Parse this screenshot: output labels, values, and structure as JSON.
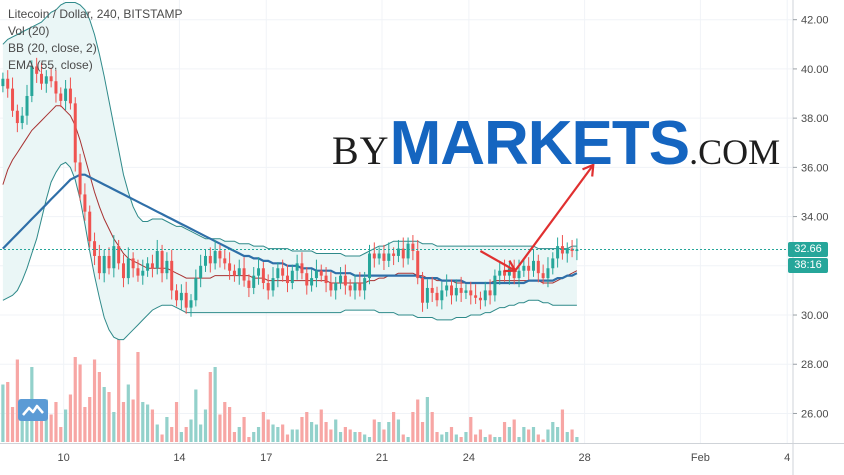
{
  "legend": {
    "line1": "Litecoin / Dollar, 240, BITSTAMP",
    "line2": "Vol (20)",
    "line3": "BB (20, close, 2)",
    "line4": "EMA (55, close)"
  },
  "watermark": {
    "by": "BY",
    "main": "MARKETS",
    "com": ".COM"
  },
  "price_tags": {
    "last": "32.66",
    "timer": "38:16"
  },
  "colors": {
    "up": "#26a69a",
    "down": "#ef5350",
    "vol_up": "#93d1cb",
    "vol_down": "#f7a6a4",
    "bb": "#2f8a8a",
    "bb_fill": "#eaf6f6",
    "ema": "#2f6fa8",
    "basis": "#a83232",
    "arrow": "#e03030",
    "last_price": "#26a69a",
    "timer": "#26a69a"
  },
  "chart_data": {
    "type": "candlestick",
    "symbol": "Litecoin / Dollar, 240, BITSTAMP",
    "ylim": [
      24.8,
      42.8
    ],
    "y_ticks": [
      26.0,
      28.0,
      30.0,
      32.0,
      34.0,
      36.0,
      38.0,
      40.0,
      42.0
    ],
    "y_tick_labels": [
      "26.00",
      "28.00",
      "30.00",
      "32.00",
      "34.00",
      "36.00",
      "38.00",
      "40.00",
      "42.00"
    ],
    "x_tick_labels": [
      "10",
      "14",
      "17",
      "21",
      "24",
      "28",
      "Feb",
      "4"
    ],
    "x_tick_days": [
      10,
      14,
      17,
      21,
      24,
      28,
      32,
      35
    ],
    "x_range_days": [
      7.8,
      35.2
    ],
    "last_price": 32.66,
    "closes": [
      39.6,
      39.2,
      38.3,
      37.8,
      38.1,
      38.9,
      40.1,
      39.8,
      39.4,
      39.7,
      39.5,
      39.0,
      38.7,
      39.2,
      38.6,
      36.2,
      34.9,
      34.2,
      33.0,
      32.4,
      31.7,
      32.4,
      31.9,
      32.8,
      32.1,
      31.5,
      32.3,
      31.9,
      31.6,
      31.8,
      32.1,
      31.9,
      32.6,
      31.7,
      32.2,
      31.0,
      30.6,
      30.9,
      30.3,
      30.6,
      31.5,
      32.0,
      32.4,
      32.1,
      32.6,
      32.3,
      32.1,
      31.8,
      31.6,
      31.9,
      31.4,
      31.1,
      31.6,
      31.9,
      31.3,
      31.0,
      31.5,
      31.9,
      31.6,
      31.3,
      31.8,
      32.1,
      31.7,
      31.2,
      31.5,
      31.8,
      31.6,
      31.3,
      31.0,
      31.3,
      31.6,
      31.2,
      31.0,
      31.3,
      31.0,
      31.5,
      32.5,
      32.3,
      32.5,
      32.2,
      32.5,
      32.4,
      32.7,
      32.3,
      32.9,
      32.6,
      31.5,
      30.5,
      31.1,
      30.9,
      30.6,
      31.0,
      31.2,
      30.8,
      31.1,
      30.9,
      31.0,
      30.8,
      30.7,
      30.6,
      31.0,
      30.8,
      31.6,
      31.8,
      31.6,
      31.9,
      31.5,
      31.8,
      32.0,
      31.8,
      32.2,
      31.7,
      31.5,
      31.9,
      32.3,
      32.8,
      32.5,
      32.7,
      32.6,
      32.66
    ],
    "volumes": [
      2.3,
      2.4,
      1.4,
      3.3,
      1.2,
      1.2,
      3.0,
      1.0,
      1.3,
      1.7,
      1.1,
      1.6,
      0.6,
      1.3,
      1.9,
      3.4,
      3.1,
      1.4,
      1.8,
      3.3,
      2.8,
      2.2,
      2.0,
      1.2,
      4.2,
      1.6,
      2.3,
      1.7,
      3.6,
      1.6,
      1.5,
      1.3,
      0.7,
      0.3,
      1.0,
      0.6,
      1.6,
      0.4,
      0.6,
      0.9,
      2.1,
      0.7,
      1.3,
      2.8,
      3.0,
      1.1,
      1.6,
      1.4,
      0.4,
      0.6,
      1.0,
      0.2,
      0.4,
      0.6,
      1.2,
      0.9,
      0.7,
      0.6,
      0.7,
      0.3,
      0.5,
      0.5,
      1.0,
      1.2,
      0.8,
      0.7,
      1.3,
      0.8,
      0.5,
      0.9,
      0.4,
      0.6,
      0.5,
      0.4,
      0.4,
      0.3,
      0.2,
      0.9,
      0.8,
      0.5,
      0.8,
      1.2,
      0.9,
      0.3,
      0.2,
      1.2,
      1.7,
      0.8,
      1.8,
      1.2,
      0.4,
      0.3,
      0.4,
      0.6,
      0.3,
      0.2,
      0.4,
      1.0,
      0.3,
      0.5,
      0.2,
      0.3,
      0.2,
      0.2,
      0.8,
      0.6,
      0.9,
      0.2,
      0.6,
      0.5,
      0.6,
      0.3,
      0.1,
      0.5,
      0.8,
      0.6,
      1.3,
      0.4,
      0.5,
      0.2
    ],
    "bb_upper": [
      41.0,
      41.2,
      41.3,
      41.4,
      41.5,
      41.6,
      41.7,
      41.8,
      41.9,
      42.1,
      42.3,
      42.4,
      42.6,
      42.7,
      42.7,
      42.7,
      42.6,
      42.4,
      42.0,
      41.4,
      40.6,
      39.7,
      38.7,
      37.7,
      36.7,
      35.7,
      35.0,
      34.4,
      34.0,
      33.8,
      33.8,
      33.9,
      33.9,
      33.9,
      33.8,
      33.7,
      33.6,
      33.6,
      33.5,
      33.4,
      33.3,
      33.2,
      33.1,
      33.1,
      33.1,
      33.1,
      33.0,
      33.0,
      33.0,
      32.9,
      32.9,
      32.9,
      32.8,
      32.8,
      32.8,
      32.7,
      32.7,
      32.7,
      32.7,
      32.7,
      32.6,
      32.6,
      32.6,
      32.6,
      32.6,
      32.5,
      32.5,
      32.5,
      32.5,
      32.5,
      32.5,
      32.4,
      32.4,
      32.4,
      32.4,
      32.5,
      32.6,
      32.7,
      32.8,
      32.8,
      32.9,
      33.0,
      33.0,
      33.0,
      33.0,
      33.0,
      33.0,
      32.9,
      32.9,
      32.9,
      32.8,
      32.8,
      32.8,
      32.8,
      32.8,
      32.8,
      32.8,
      32.8,
      32.8,
      32.8,
      32.8,
      32.8,
      32.8,
      32.8,
      32.8,
      32.8,
      32.8,
      32.8,
      32.8,
      32.8,
      32.8,
      32.7,
      32.7,
      32.7,
      32.7,
      32.7,
      32.7,
      32.7,
      32.8,
      32.8
    ],
    "bb_lower": [
      30.6,
      30.7,
      30.8,
      31.0,
      31.4,
      31.9,
      32.5,
      33.1,
      33.9,
      34.7,
      35.4,
      35.8,
      36.1,
      36.2,
      36.0,
      35.5,
      34.7,
      33.7,
      32.6,
      31.6,
      30.7,
      29.9,
      29.4,
      29.1,
      29.0,
      29.0,
      29.2,
      29.4,
      29.6,
      29.8,
      30.0,
      30.2,
      30.3,
      30.4,
      30.4,
      30.4,
      30.3,
      30.2,
      30.1,
      30.1,
      30.1,
      30.1,
      30.1,
      30.1,
      30.1,
      30.1,
      30.1,
      30.1,
      30.1,
      30.1,
      30.1,
      30.1,
      30.1,
      30.1,
      30.1,
      30.1,
      30.1,
      30.1,
      30.1,
      30.1,
      30.1,
      30.1,
      30.1,
      30.1,
      30.1,
      30.1,
      30.1,
      30.1,
      30.1,
      30.1,
      30.1,
      30.2,
      30.2,
      30.2,
      30.2,
      30.2,
      30.2,
      30.2,
      30.1,
      30.1,
      30.1,
      30.1,
      30.0,
      30.0,
      30.0,
      30.0,
      29.9,
      29.9,
      29.9,
      29.9,
      29.8,
      29.8,
      29.8,
      29.8,
      29.9,
      29.9,
      29.9,
      30.0,
      30.0,
      30.0,
      30.1,
      30.1,
      30.2,
      30.3,
      30.3,
      30.4,
      30.4,
      30.5,
      30.5,
      30.6,
      30.6,
      30.6,
      30.5,
      30.5,
      30.4,
      30.4,
      30.4,
      30.4,
      30.4,
      30.4
    ],
    "bb_basis": [
      35.3,
      35.9,
      36.3,
      36.6,
      36.9,
      37.2,
      37.5,
      37.7,
      37.9,
      38.1,
      38.3,
      38.5,
      38.5,
      38.3,
      38.1,
      37.7,
      37.1,
      36.4,
      35.7,
      35.0,
      34.4,
      33.9,
      33.5,
      33.1,
      32.8,
      32.5,
      32.3,
      32.2,
      32.1,
      32.0,
      31.9,
      31.9,
      31.9,
      31.9,
      31.9,
      31.8,
      31.7,
      31.6,
      31.5,
      31.5,
      31.5,
      31.5,
      31.5,
      31.5,
      31.6,
      31.6,
      31.6,
      31.6,
      31.6,
      31.6,
      31.6,
      31.6,
      31.5,
      31.5,
      31.5,
      31.4,
      31.4,
      31.4,
      31.4,
      31.4,
      31.4,
      31.4,
      31.4,
      31.4,
      31.4,
      31.4,
      31.4,
      31.4,
      31.3,
      31.3,
      31.3,
      31.3,
      31.3,
      31.3,
      31.3,
      31.3,
      31.4,
      31.4,
      31.5,
      31.5,
      31.6,
      31.6,
      31.7,
      31.7,
      31.7,
      31.7,
      31.6,
      31.6,
      31.5,
      31.5,
      31.4,
      31.4,
      31.4,
      31.4,
      31.3,
      31.3,
      31.3,
      31.3,
      31.3,
      31.3,
      31.3,
      31.3,
      31.4,
      31.4,
      31.4,
      31.4,
      31.4,
      31.4,
      31.4,
      31.4,
      31.4,
      31.4,
      31.3,
      31.3,
      31.3,
      31.4,
      31.5,
      31.6,
      31.7,
      31.8
    ],
    "ema": [
      32.7,
      32.9,
      33.1,
      33.3,
      33.5,
      33.7,
      33.9,
      34.1,
      34.3,
      34.5,
      34.7,
      34.9,
      35.1,
      35.3,
      35.5,
      35.6,
      35.7,
      35.7,
      35.6,
      35.5,
      35.4,
      35.3,
      35.2,
      35.1,
      35.0,
      34.9,
      34.8,
      34.7,
      34.6,
      34.5,
      34.4,
      34.3,
      34.2,
      34.1,
      34.0,
      33.9,
      33.8,
      33.7,
      33.6,
      33.5,
      33.4,
      33.3,
      33.2,
      33.1,
      33.0,
      32.9,
      32.8,
      32.7,
      32.6,
      32.5,
      32.4,
      32.4,
      32.3,
      32.3,
      32.2,
      32.2,
      32.1,
      32.1,
      32.1,
      32.0,
      32.0,
      32.0,
      31.9,
      31.9,
      31.9,
      31.8,
      31.8,
      31.8,
      31.8,
      31.7,
      31.7,
      31.7,
      31.7,
      31.6,
      31.6,
      31.6,
      31.6,
      31.6,
      31.6,
      31.6,
      31.6,
      31.6,
      31.6,
      31.6,
      31.6,
      31.6,
      31.6,
      31.5,
      31.5,
      31.5,
      31.5,
      31.4,
      31.4,
      31.4,
      31.4,
      31.4,
      31.3,
      31.3,
      31.3,
      31.3,
      31.3,
      31.3,
      31.3,
      31.3,
      31.3,
      31.3,
      31.3,
      31.3,
      31.3,
      31.4,
      31.4,
      31.4,
      31.4,
      31.4,
      31.4,
      31.5,
      31.5,
      31.6,
      31.6,
      31.7
    ],
    "annotation": {
      "type": "arrow",
      "points": [
        [
          24.4,
          32.6
        ],
        [
          25.6,
          31.8
        ],
        [
          28.3,
          36.1
        ]
      ]
    }
  }
}
